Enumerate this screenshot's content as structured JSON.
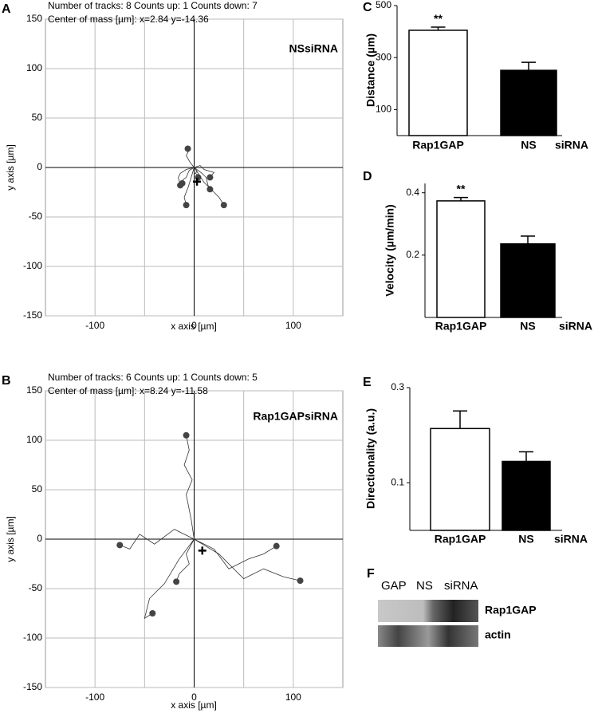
{
  "chart_data": [
    {
      "type": "track",
      "panel": "A",
      "header": [
        "Number of tracks: 8  Counts up: 1  Counts down: 7",
        "Center of mass [µm]: x=2.84 y=-14.36"
      ],
      "label": "NSsiRNA",
      "xlabel": "x axis [µm]",
      "ylabel": "y axis  [µm]",
      "xlim": [
        -150,
        150
      ],
      "ylim": [
        -150,
        150
      ],
      "xticks": [
        -100,
        0,
        100
      ],
      "yticks": [
        -150,
        -100,
        -50,
        0,
        50,
        100,
        150
      ],
      "xgrid": [
        -100,
        -50,
        50,
        100
      ],
      "color": "#333333",
      "end_color": "#444444",
      "center": {
        "x": 2.84,
        "y": -14.36
      },
      "tracks": [
        {
          "x": [
            0,
            -4,
            -8,
            -6,
            -6.4
          ],
          "y": [
            0,
            5,
            12,
            16,
            19
          ]
        },
        {
          "x": [
            0,
            -5,
            -8,
            -11,
            -12
          ],
          "y": [
            0,
            -3,
            -10,
            -12,
            -16
          ]
        },
        {
          "x": [
            0,
            -3,
            -6,
            -10,
            -8
          ],
          "y": [
            0,
            -10,
            -20,
            -30,
            -38
          ]
        },
        {
          "x": [
            0,
            3,
            1,
            5,
            4
          ],
          "y": [
            0,
            -4,
            -6,
            -8,
            -10
          ]
        },
        {
          "x": [
            0,
            6,
            10,
            20,
            16
          ],
          "y": [
            0,
            2,
            -2,
            -5,
            -10
          ]
        },
        {
          "x": [
            0,
            8,
            12,
            14,
            16
          ],
          "y": [
            0,
            -6,
            -10,
            -18,
            -22
          ]
        },
        {
          "x": [
            0,
            10,
            20,
            25,
            30
          ],
          "y": [
            0,
            -15,
            -25,
            -30,
            -38
          ]
        },
        {
          "x": [
            0,
            -8,
            -14,
            -16,
            -14
          ],
          "y": [
            0,
            -2,
            -6,
            -10,
            -18
          ]
        }
      ]
    },
    {
      "type": "track",
      "panel": "B",
      "header": [
        "Number of tracks: 6  Counts up: 1  Counts down: 5",
        "Center of mass [µm]: x=8.24 y=-11.58"
      ],
      "label": "Rap1GAPsiRNA",
      "xlabel": "x axis [µm]",
      "ylabel": "y axis  [µm]",
      "xlim": [
        -150,
        150
      ],
      "ylim": [
        -150,
        150
      ],
      "xticks": [
        -100,
        0,
        100
      ],
      "yticks": [
        -150,
        -100,
        -50,
        0,
        50,
        100,
        150
      ],
      "xgrid": [
        -100,
        -50,
        50,
        100
      ],
      "color": "#333333",
      "end_color": "#444444",
      "center": {
        "x": 8.24,
        "y": -11.58
      },
      "tracks": [
        {
          "x": [
            0,
            -3,
            -8,
            -2,
            -10,
            -5,
            -8
          ],
          "y": [
            0,
            20,
            45,
            60,
            75,
            90,
            105
          ]
        },
        {
          "x": [
            0,
            -20,
            -40,
            -55,
            -65,
            -75
          ],
          "y": [
            0,
            10,
            -5,
            5,
            -10,
            -6
          ]
        },
        {
          "x": [
            0,
            -8,
            -5,
            -15,
            -18
          ],
          "y": [
            0,
            -15,
            -25,
            -35,
            -43
          ]
        },
        {
          "x": [
            0,
            20,
            35,
            55,
            70,
            83
          ],
          "y": [
            0,
            -10,
            -30,
            -20,
            -15,
            -7
          ]
        },
        {
          "x": [
            0,
            25,
            50,
            70,
            90,
            107
          ],
          "y": [
            0,
            -15,
            -40,
            -30,
            -38,
            -42
          ]
        },
        {
          "x": [
            0,
            -15,
            -30,
            -45,
            -50,
            -42
          ],
          "y": [
            0,
            -20,
            -45,
            -60,
            -80,
            -75
          ]
        }
      ]
    },
    {
      "type": "bar",
      "panel": "C",
      "ylabel": "Distance (µm)",
      "categories": [
        "Rap1GAP",
        "NS"
      ],
      "group_label": "siRNA",
      "values": [
        405,
        251
      ],
      "errors": [
        12,
        31
      ],
      "colors": [
        "#ffffff",
        "#000000"
      ],
      "markers": [
        "**",
        null
      ],
      "ylim": [
        0,
        500
      ],
      "yticks": [
        100,
        300,
        500
      ]
    },
    {
      "type": "bar",
      "panel": "D",
      "ylabel": "Velocity (µm/min)",
      "categories": [
        "Rap1GAP",
        "NS"
      ],
      "group_label": "siRNA",
      "values": [
        0.374,
        0.236
      ],
      "errors": [
        0.011,
        0.025
      ],
      "colors": [
        "#ffffff",
        "#000000"
      ],
      "markers": [
        "**",
        null
      ],
      "ylim": [
        0,
        0.43
      ],
      "yticks": [
        0.2,
        0.4
      ]
    },
    {
      "type": "bar",
      "panel": "E",
      "ylabel": "Directionality (a.u.)",
      "categories": [
        "Rap1GAP",
        "NS"
      ],
      "group_label": "siRNA",
      "values": [
        0.214,
        0.145
      ],
      "errors": [
        0.037,
        0.02
      ],
      "colors": [
        "#ffffff",
        "#000000"
      ],
      "ylim": [
        0,
        0.3
      ],
      "yticks": [
        0.1,
        0.3
      ]
    }
  ],
  "blot": {
    "panel": "F",
    "lanes": [
      "GAP",
      "NS",
      "siRNA"
    ],
    "bands": [
      "Rap1GAP",
      "actin"
    ]
  }
}
